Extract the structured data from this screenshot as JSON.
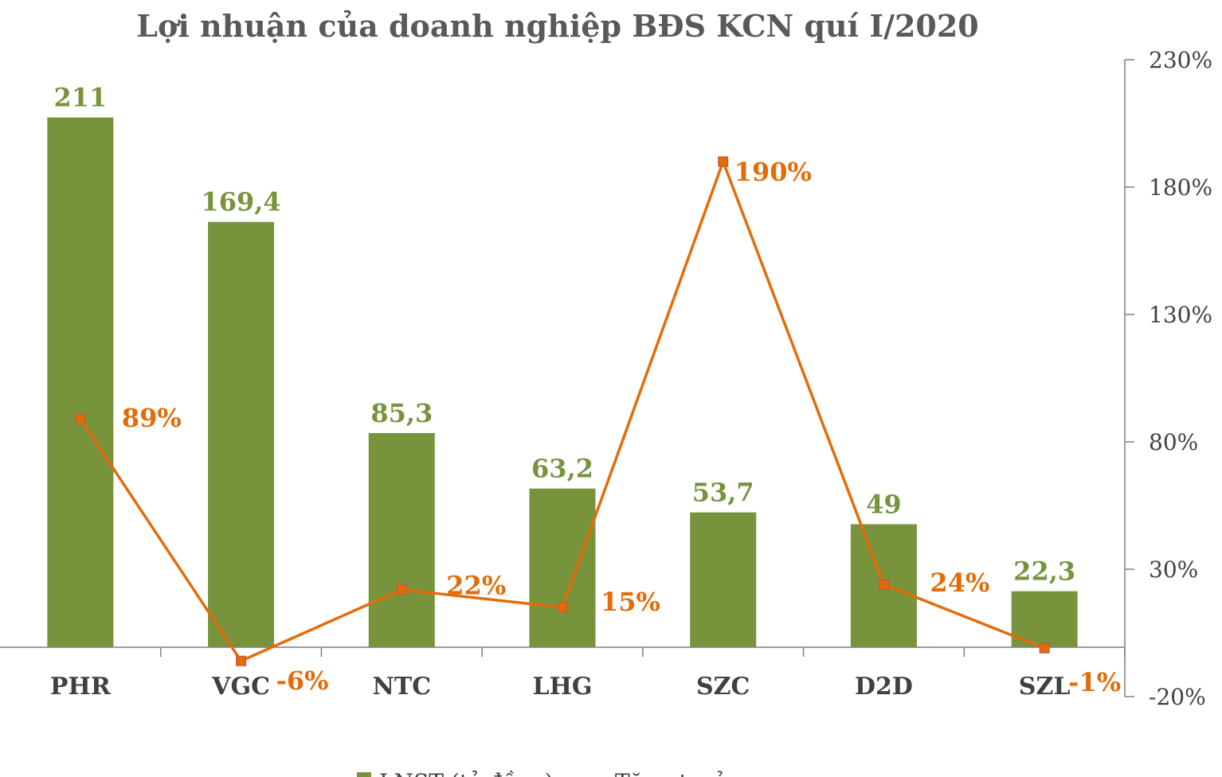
{
  "chart_data": {
    "type": "bar",
    "title": "Lợi nhuận của doanh nghiệp BĐS KCN quí I/2020",
    "categories": [
      "PHR",
      "VGC",
      "NTC",
      "LHG",
      "SZC",
      "D2D",
      "SZL"
    ],
    "series": [
      {
        "type": "bar",
        "axis": "left",
        "values": [
          211,
          169.4,
          85.3,
          63.2,
          53.7,
          49,
          22.3
        ],
        "labels": [
          "211",
          "169,4",
          "85,3",
          "63,2",
          "53,7",
          "49",
          "22,3"
        ],
        "color": "#77933C"
      },
      {
        "type": "line",
        "axis": "right",
        "values": [
          89,
          -6,
          22,
          15,
          190,
          24,
          -1
        ],
        "labels": [
          "89%",
          "-6%",
          "22%",
          "15%",
          "190%",
          "24%",
          "-1%"
        ],
        "color": "#E36C09"
      }
    ],
    "left_axis": {
      "range": [
        0,
        234
      ],
      "visible": false
    },
    "right_axis": {
      "range": [
        -20,
        230
      ],
      "ticks": [
        230,
        180,
        130,
        80,
        30,
        -20
      ],
      "tick_labels": [
        "230%",
        "180%",
        "130%",
        "80%",
        "30%",
        "-20%"
      ]
    },
    "grid": false,
    "legend": {
      "position": "bottom",
      "entries": [
        "LNST (tỷ đồng)",
        "Tăng trưởng"
      ]
    }
  }
}
